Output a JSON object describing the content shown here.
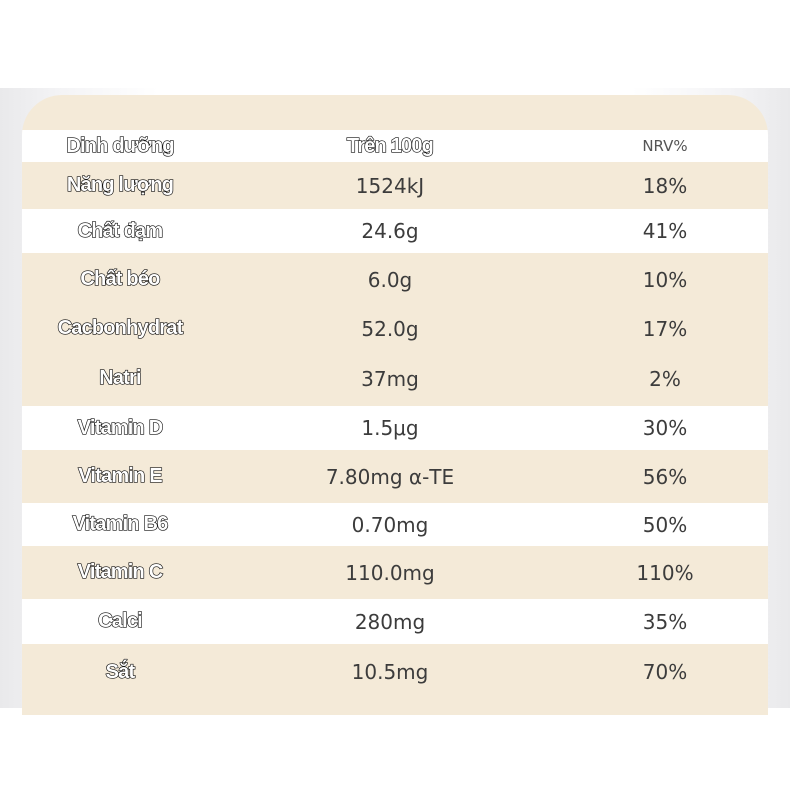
{
  "table": {
    "header": {
      "nutrient": "Dinh dưỡng",
      "per100g": "Trên 100g",
      "nrv": "NRV%"
    },
    "rows": [
      {
        "nutrient": "Năng lượng",
        "per100g": "1524kJ",
        "nrv": "18%"
      },
      {
        "nutrient": "Chất đạm",
        "per100g": "24.6g",
        "nrv": "41%"
      },
      {
        "nutrient": "Chất béo",
        "per100g": "6.0g",
        "nrv": "10%"
      },
      {
        "nutrient": "Cacbonhydrat",
        "per100g": "52.0g",
        "nrv": "17%"
      },
      {
        "nutrient": "Natri",
        "per100g": "37mg",
        "nrv": "2%"
      },
      {
        "nutrient": "Vitamin D",
        "per100g": "1.5μg",
        "nrv": "30%"
      },
      {
        "nutrient": "Vitamin E",
        "per100g": "7.80mg α-TE",
        "nrv": "56%"
      },
      {
        "nutrient": "Vitamin B6",
        "per100g": "0.70mg",
        "nrv": "50%"
      },
      {
        "nutrient": "Vitamin C",
        "per100g": "110.0mg",
        "nrv": "110%"
      },
      {
        "nutrient": "Calci",
        "per100g": "280mg",
        "nrv": "35%"
      },
      {
        "nutrient": "Sắt",
        "per100g": "10.5mg",
        "nrv": "70%"
      }
    ]
  },
  "colors": {
    "cream": "#f4ead8",
    "white": "#ffffff",
    "text": "#3c3c3c"
  }
}
